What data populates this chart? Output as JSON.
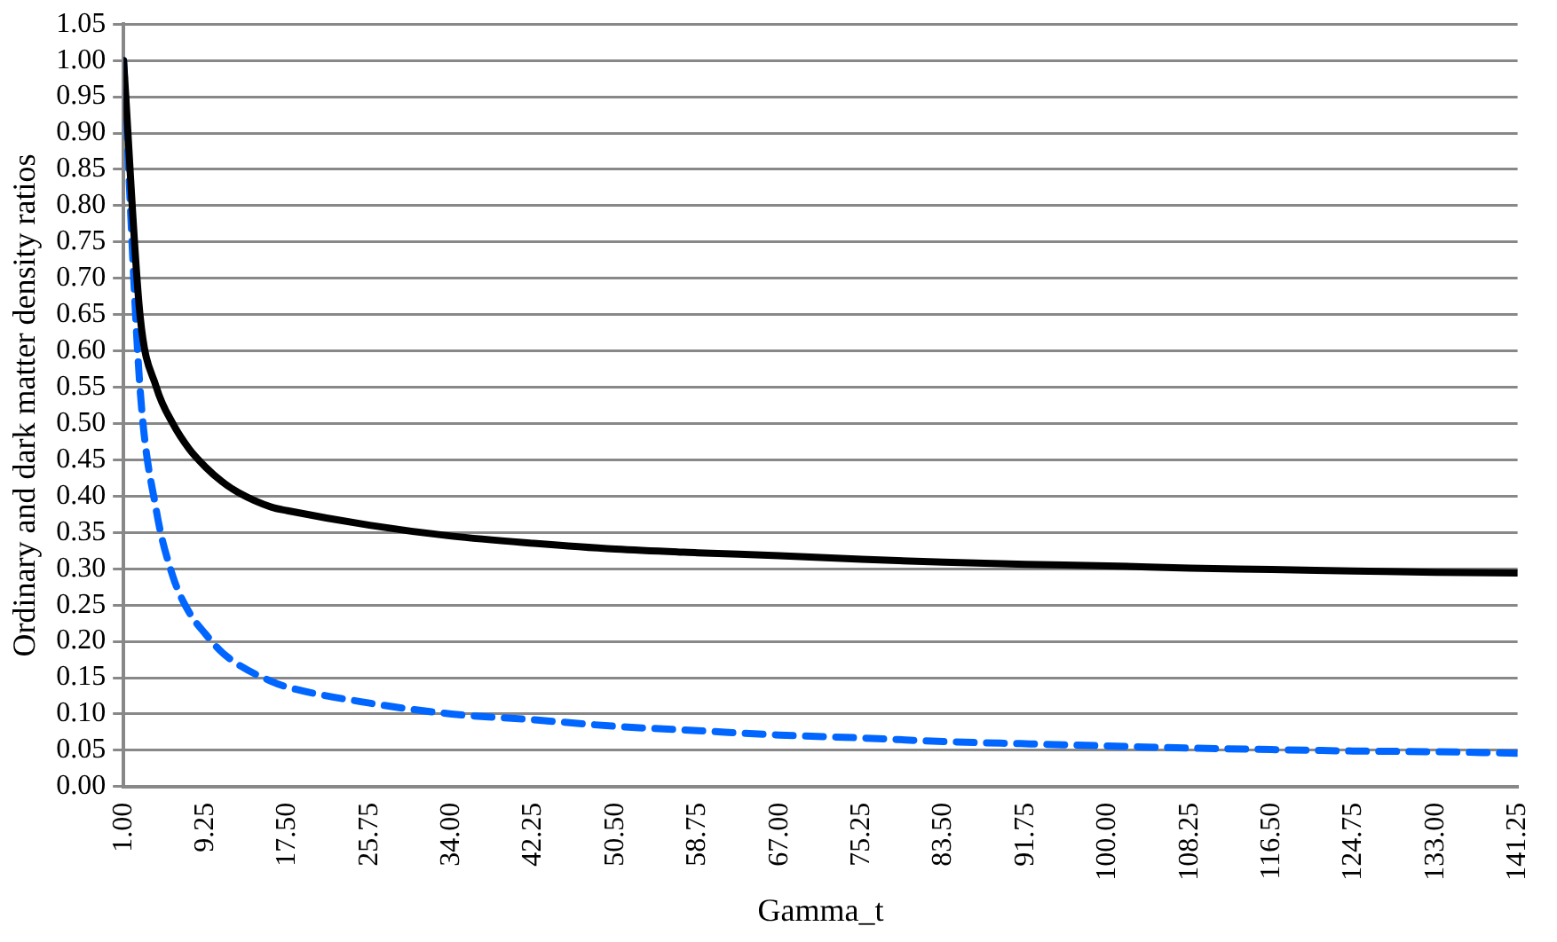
{
  "chart_data": {
    "type": "line",
    "xlabel": "Gamma_t",
    "ylabel": "Ordinary and dark matter density ratios",
    "x": [
      1,
      2.65,
      4.3,
      5.95,
      7.6,
      9.25,
      10.9,
      12.55,
      15.85,
      17.5,
      25.75,
      34,
      42.25,
      50.5,
      58.75,
      67,
      75.25,
      83.5,
      91.75,
      100,
      108.25,
      116.5,
      124.75,
      133,
      141.25
    ],
    "series": [
      {
        "color": "#000000",
        "line_style": "solid",
        "values": [
          1.0,
          0.65,
          0.55,
          0.5,
          0.465,
          0.44,
          0.42,
          0.405,
          0.385,
          0.38,
          0.36,
          0.345,
          0.335,
          0.327,
          0.322,
          0.318,
          0.313,
          0.309,
          0.306,
          0.304,
          0.301,
          0.299,
          0.297,
          0.295,
          0.294
        ]
      },
      {
        "color": "#0066ff",
        "line_style": "dashed",
        "values": [
          1.0,
          0.55,
          0.38,
          0.29,
          0.24,
          0.21,
          0.185,
          0.168,
          0.145,
          0.137,
          0.115,
          0.1,
          0.092,
          0.083,
          0.077,
          0.071,
          0.067,
          0.062,
          0.059,
          0.056,
          0.053,
          0.051,
          0.049,
          0.048,
          0.046
        ]
      }
    ],
    "xlim": [
      1,
      141.25
    ],
    "xticks": [
      {
        "value": 1,
        "label": "1.00"
      },
      {
        "value": 9.25,
        "label": "9.25"
      },
      {
        "value": 17.5,
        "label": "17.50"
      },
      {
        "value": 25.75,
        "label": "25.75"
      },
      {
        "value": 34,
        "label": "34.00"
      },
      {
        "value": 42.25,
        "label": "42.25"
      },
      {
        "value": 50.5,
        "label": "50.50"
      },
      {
        "value": 58.75,
        "label": "58.75"
      },
      {
        "value": 67,
        "label": "67.00"
      },
      {
        "value": 75.25,
        "label": "75.25"
      },
      {
        "value": 83.5,
        "label": "83.50"
      },
      {
        "value": 91.75,
        "label": "91.75"
      },
      {
        "value": 100,
        "label": "100.00"
      },
      {
        "value": 108.25,
        "label": "108.25"
      },
      {
        "value": 116.5,
        "label": "116.50"
      },
      {
        "value": 124.75,
        "label": "124.75"
      },
      {
        "value": 133,
        "label": "133.00"
      },
      {
        "value": 141.25,
        "label": "141.25"
      }
    ],
    "ylim": [
      0,
      1.05
    ],
    "yticks": [
      {
        "value": 0,
        "label": "0.00"
      },
      {
        "value": 0.05,
        "label": "0.05"
      },
      {
        "value": 0.1,
        "label": "0.10"
      },
      {
        "value": 0.15,
        "label": "0.15"
      },
      {
        "value": 0.2,
        "label": "0.20"
      },
      {
        "value": 0.25,
        "label": "0.25"
      },
      {
        "value": 0.3,
        "label": "0.30"
      },
      {
        "value": 0.35,
        "label": "0.35"
      },
      {
        "value": 0.4,
        "label": "0.40"
      },
      {
        "value": 0.45,
        "label": "0.45"
      },
      {
        "value": 0.5,
        "label": "0.50"
      },
      {
        "value": 0.55,
        "label": "0.55"
      },
      {
        "value": 0.6,
        "label": "0.60"
      },
      {
        "value": 0.65,
        "label": "0.65"
      },
      {
        "value": 0.7,
        "label": "0.70"
      },
      {
        "value": 0.75,
        "label": "0.75"
      },
      {
        "value": 0.8,
        "label": "0.80"
      },
      {
        "value": 0.85,
        "label": "0.85"
      },
      {
        "value": 0.9,
        "label": "0.90"
      },
      {
        "value": 0.95,
        "label": "0.95"
      },
      {
        "value": 1,
        "label": "1.00"
      },
      {
        "value": 1.05,
        "label": "1.05"
      }
    ],
    "grid": "y",
    "legend": false,
    "marker": "none"
  }
}
